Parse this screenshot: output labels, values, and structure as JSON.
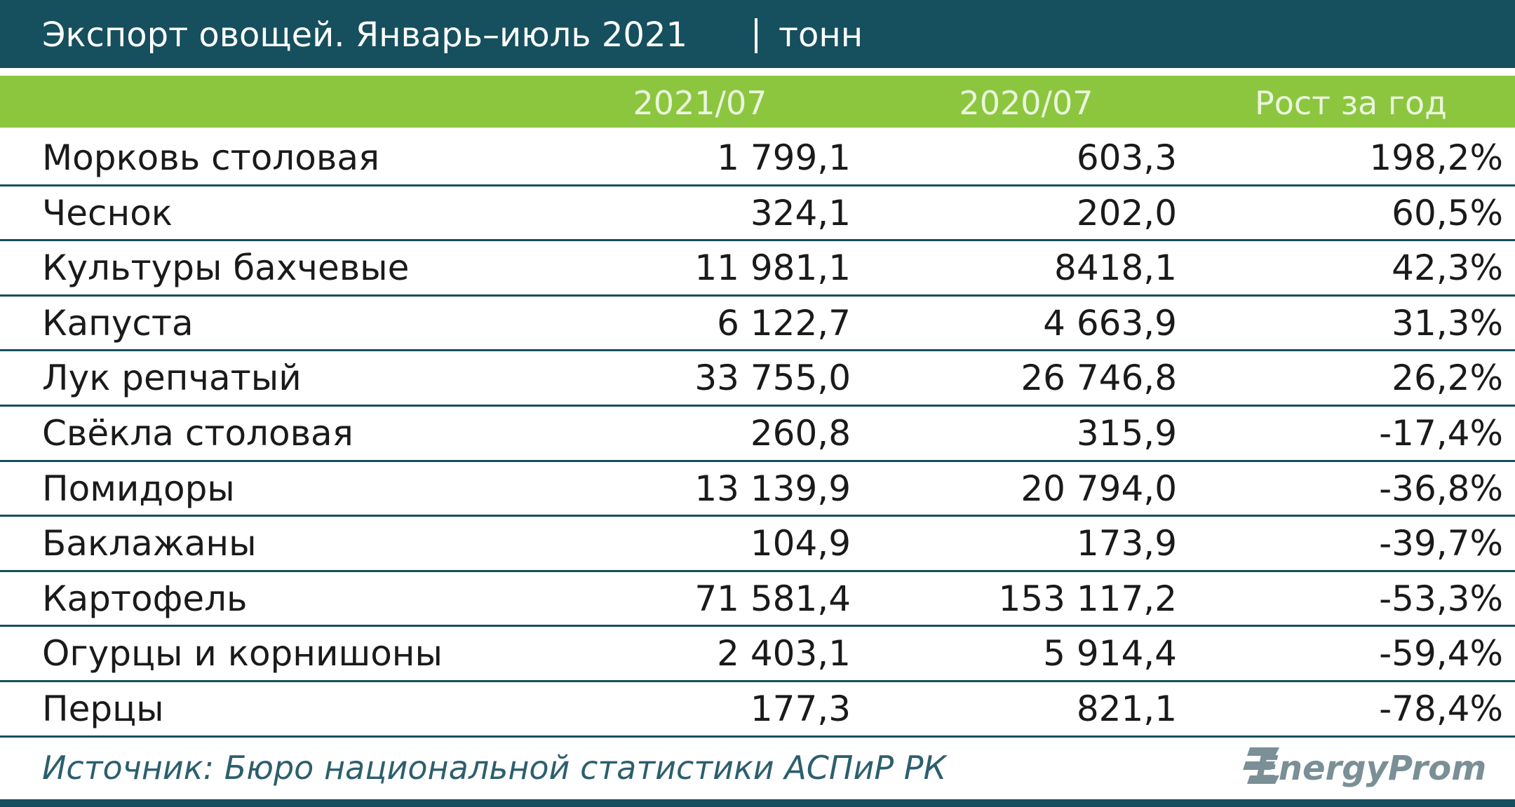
{
  "header": {
    "title": "Экспорт овощей. Январь–июль 2021",
    "unit": "тонн"
  },
  "table": {
    "columns": [
      "2021/07",
      "2020/07",
      "Рост за год"
    ],
    "rows": [
      [
        "Морковь столовая",
        "1 799,1",
        "603,3",
        "198,2%"
      ],
      [
        "Чеснок",
        "324,1",
        "202,0",
        "60,5%"
      ],
      [
        "Культуры бахчевые",
        "11 981,1",
        "8418,1",
        "42,3%"
      ],
      [
        "Капуста",
        "6 122,7",
        "4 663,9",
        "31,3%"
      ],
      [
        "Лук репчатый",
        "33 755,0",
        "26 746,8",
        "26,2%"
      ],
      [
        "Свёкла столовая",
        "260,8",
        "315,9",
        "-17,4%"
      ],
      [
        "Помидоры",
        "13 139,9",
        "20 794,0",
        "-36,8%"
      ],
      [
        "Баклажаны",
        "104,9",
        "173,9",
        "-39,7%"
      ],
      [
        "Картофель",
        "71 581,4",
        "153 117,2",
        "-53,3%"
      ],
      [
        "Огурцы и корнишоны",
        "2 403,1",
        "5 914,4",
        "-59,4%"
      ],
      [
        "Перцы",
        "177,3",
        "821,1",
        "-78,4%"
      ]
    ]
  },
  "footer": {
    "source": "Источник: Бюро национальной статистики АСПиР РК",
    "logo": "EnergyProm"
  }
}
